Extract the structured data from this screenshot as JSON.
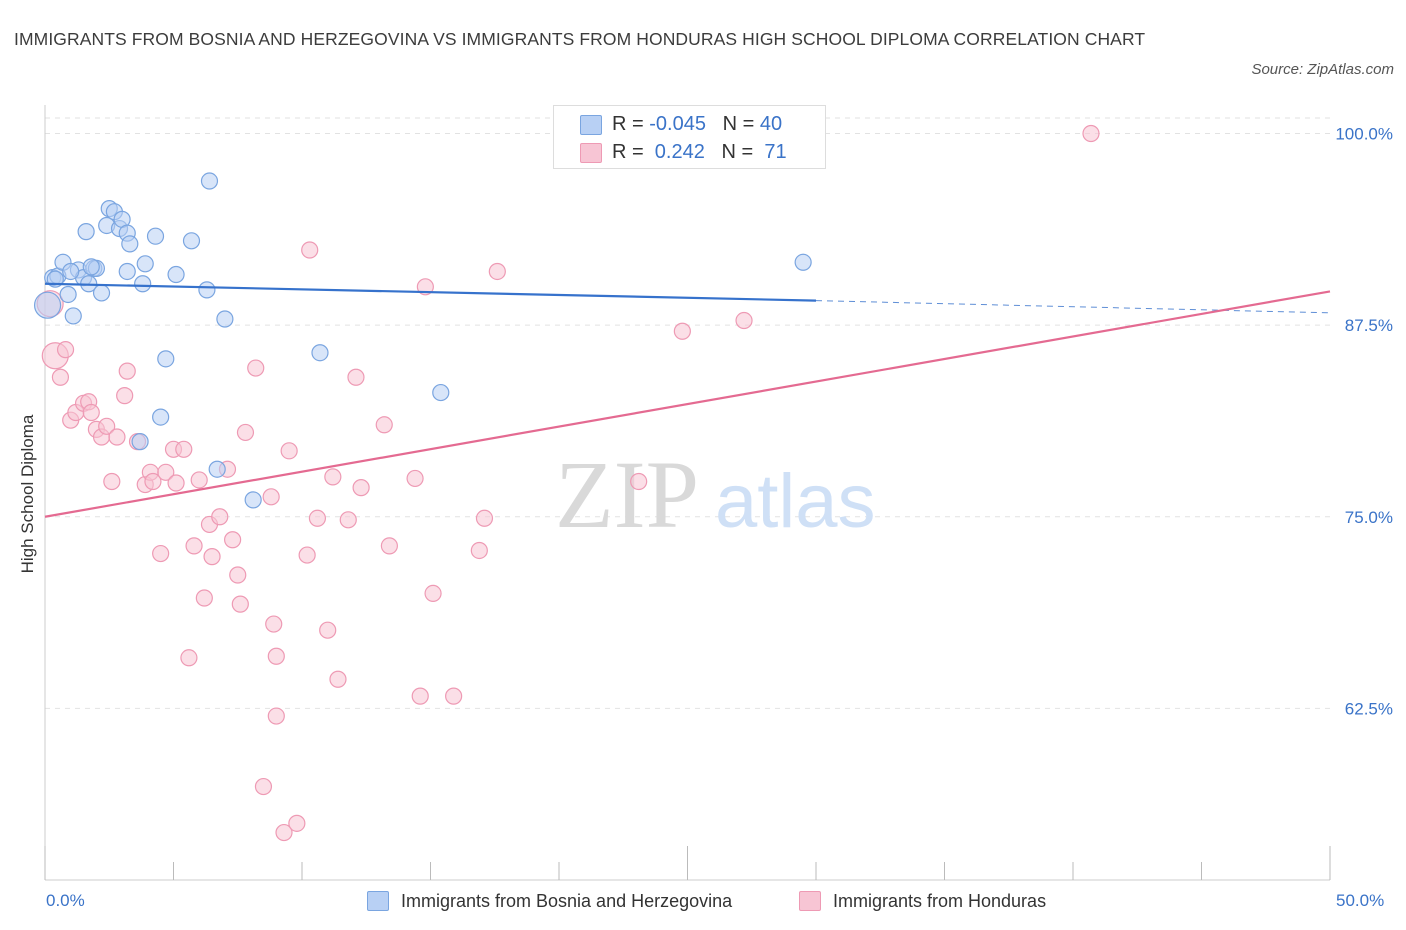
{
  "title": "IMMIGRANTS FROM BOSNIA AND HERZEGOVINA VS IMMIGRANTS FROM HONDURAS HIGH SCHOOL DIPLOMA CORRELATION CHART",
  "source": "Source: ZipAtlas.com",
  "watermark": {
    "zip": "ZIP",
    "atlas": "atlas"
  },
  "legend": {
    "rows": [
      {
        "r_label": "R = ",
        "r_value": "-0.045",
        "n_label": "N = ",
        "n_value": "40"
      },
      {
        "r_label": "R = ",
        "r_value": " 0.242",
        "n_label": "N = ",
        "n_value": " 71"
      }
    ]
  },
  "colors": {
    "blue_fill": "#b8d0f4",
    "blue_stroke": "#7aa5e0",
    "blue_line": "#3672cc",
    "pink_fill": "#f7c5d4",
    "pink_stroke": "#ee9ab4",
    "pink_line": "#e46a91",
    "tick_text": "#3a73c8",
    "grid": "#e2e2e2"
  },
  "chart_data": {
    "type": "scatter",
    "title": "IMMIGRANTS FROM BOSNIA AND HERZEGOVINA VS IMMIGRANTS FROM HONDURAS HIGH SCHOOL DIPLOMA CORRELATION CHART",
    "xlabel": "",
    "ylabel": "High School Diploma",
    "xlim": [
      0,
      50
    ],
    "ylim": [
      50,
      100
    ],
    "x_tick_labels": [
      "0.0%",
      "50.0%"
    ],
    "y_ticks": [
      62.5,
      75.0,
      87.5,
      100.0
    ],
    "y_tick_labels": [
      "62.5%",
      "75.0%",
      "87.5%",
      "100.0%"
    ],
    "grid": true,
    "legend_position": "bottom",
    "series": [
      {
        "name": "Immigrants from Bosnia and Herzegovina",
        "color": "#7aa5e0",
        "R": -0.045,
        "N": 40,
        "trend": {
          "x": [
            0,
            30
          ],
          "y": [
            90.2,
            89.1
          ]
        },
        "trend_dashed": {
          "x": [
            30,
            50
          ],
          "y": [
            89.1,
            88.3
          ]
        },
        "points": [
          {
            "x": 0.1,
            "y": 88.8,
            "big": true
          },
          {
            "x": 0.3,
            "y": 90.6
          },
          {
            "x": 0.5,
            "y": 90.7
          },
          {
            "x": 0.7,
            "y": 91.6
          },
          {
            "x": 0.9,
            "y": 89.5
          },
          {
            "x": 1.1,
            "y": 88.1
          },
          {
            "x": 1.3,
            "y": 91.1
          },
          {
            "x": 1.5,
            "y": 90.6
          },
          {
            "x": 1.6,
            "y": 93.6
          },
          {
            "x": 1.7,
            "y": 90.2
          },
          {
            "x": 1.9,
            "y": 91.2
          },
          {
            "x": 2.0,
            "y": 91.2
          },
          {
            "x": 2.2,
            "y": 89.6
          },
          {
            "x": 2.4,
            "y": 94.0
          },
          {
            "x": 2.5,
            "y": 95.1
          },
          {
            "x": 2.7,
            "y": 94.9
          },
          {
            "x": 2.9,
            "y": 93.8
          },
          {
            "x": 3.0,
            "y": 94.4
          },
          {
            "x": 3.2,
            "y": 93.5
          },
          {
            "x": 3.3,
            "y": 92.8
          },
          {
            "x": 3.2,
            "y": 91.0
          },
          {
            "x": 3.8,
            "y": 90.2
          },
          {
            "x": 3.9,
            "y": 91.5
          },
          {
            "x": 4.3,
            "y": 93.3
          },
          {
            "x": 4.7,
            "y": 85.3
          },
          {
            "x": 4.5,
            "y": 81.5
          },
          {
            "x": 3.7,
            "y": 79.9
          },
          {
            "x": 5.1,
            "y": 90.8
          },
          {
            "x": 5.7,
            "y": 93.0
          },
          {
            "x": 6.3,
            "y": 89.8
          },
          {
            "x": 6.4,
            "y": 96.9
          },
          {
            "x": 6.7,
            "y": 78.1
          },
          {
            "x": 7.0,
            "y": 87.9
          },
          {
            "x": 8.1,
            "y": 76.1
          },
          {
            "x": 10.7,
            "y": 85.7
          },
          {
            "x": 15.4,
            "y": 83.1
          },
          {
            "x": 29.5,
            "y": 91.6
          },
          {
            "x": 0.4,
            "y": 90.5
          },
          {
            "x": 1.0,
            "y": 91.0
          },
          {
            "x": 1.8,
            "y": 91.3
          }
        ]
      },
      {
        "name": "Immigrants from Honduras",
        "color": "#ee9ab4",
        "R": 0.242,
        "N": 71,
        "trend": {
          "x": [
            0,
            50
          ],
          "y": [
            75.0,
            89.7
          ]
        },
        "points": [
          {
            "x": 0.2,
            "y": 88.9,
            "big": true
          },
          {
            "x": 0.4,
            "y": 85.5,
            "big": true
          },
          {
            "x": 0.6,
            "y": 84.1
          },
          {
            "x": 0.8,
            "y": 85.9
          },
          {
            "x": 1.0,
            "y": 81.3
          },
          {
            "x": 1.2,
            "y": 81.8
          },
          {
            "x": 1.5,
            "y": 82.4
          },
          {
            "x": 1.7,
            "y": 82.5
          },
          {
            "x": 1.8,
            "y": 81.8
          },
          {
            "x": 2.0,
            "y": 80.7
          },
          {
            "x": 2.2,
            "y": 80.2
          },
          {
            "x": 2.4,
            "y": 80.9
          },
          {
            "x": 2.6,
            "y": 77.3
          },
          {
            "x": 2.8,
            "y": 80.2
          },
          {
            "x": 3.1,
            "y": 82.9
          },
          {
            "x": 3.2,
            "y": 84.5
          },
          {
            "x": 3.6,
            "y": 79.9
          },
          {
            "x": 3.9,
            "y": 77.1
          },
          {
            "x": 4.1,
            "y": 77.9
          },
          {
            "x": 4.2,
            "y": 77.3
          },
          {
            "x": 4.5,
            "y": 72.6
          },
          {
            "x": 4.7,
            "y": 77.9
          },
          {
            "x": 5.0,
            "y": 79.4
          },
          {
            "x": 5.1,
            "y": 77.2
          },
          {
            "x": 5.4,
            "y": 79.4
          },
          {
            "x": 5.6,
            "y": 65.8
          },
          {
            "x": 5.8,
            "y": 73.1
          },
          {
            "x": 6.0,
            "y": 77.4
          },
          {
            "x": 6.2,
            "y": 69.7
          },
          {
            "x": 6.4,
            "y": 74.5
          },
          {
            "x": 6.5,
            "y": 72.4
          },
          {
            "x": 6.8,
            "y": 75.0
          },
          {
            "x": 7.1,
            "y": 78.1
          },
          {
            "x": 7.3,
            "y": 73.5
          },
          {
            "x": 7.5,
            "y": 71.2
          },
          {
            "x": 7.6,
            "y": 69.3
          },
          {
            "x": 7.8,
            "y": 80.5
          },
          {
            "x": 8.2,
            "y": 84.7
          },
          {
            "x": 8.5,
            "y": 57.4
          },
          {
            "x": 8.8,
            "y": 76.3
          },
          {
            "x": 8.9,
            "y": 68.0
          },
          {
            "x": 9.0,
            "y": 65.9
          },
          {
            "x": 9.3,
            "y": 54.4
          },
          {
            "x": 9.5,
            "y": 79.3
          },
          {
            "x": 9.8,
            "y": 55.0
          },
          {
            "x": 10.2,
            "y": 72.5
          },
          {
            "x": 10.3,
            "y": 92.4
          },
          {
            "x": 10.6,
            "y": 74.9
          },
          {
            "x": 11.0,
            "y": 67.6
          },
          {
            "x": 11.2,
            "y": 77.6
          },
          {
            "x": 11.4,
            "y": 64.4
          },
          {
            "x": 11.8,
            "y": 74.8
          },
          {
            "x": 12.1,
            "y": 84.1
          },
          {
            "x": 12.3,
            "y": 76.9
          },
          {
            "x": 13.2,
            "y": 81.0
          },
          {
            "x": 13.4,
            "y": 73.1
          },
          {
            "x": 14.4,
            "y": 77.5
          },
          {
            "x": 14.6,
            "y": 63.3
          },
          {
            "x": 14.8,
            "y": 90.0
          },
          {
            "x": 15.1,
            "y": 70.0
          },
          {
            "x": 15.9,
            "y": 63.3
          },
          {
            "x": 16.9,
            "y": 72.8
          },
          {
            "x": 17.1,
            "y": 74.9
          },
          {
            "x": 17.6,
            "y": 91.0
          },
          {
            "x": 22.5,
            "y": 100.0
          },
          {
            "x": 23.1,
            "y": 77.3
          },
          {
            "x": 24.8,
            "y": 87.1
          },
          {
            "x": 27.2,
            "y": 87.8
          },
          {
            "x": 28.3,
            "y": 100.0
          },
          {
            "x": 40.7,
            "y": 100.0
          },
          {
            "x": 9.0,
            "y": 62.0
          }
        ]
      }
    ]
  },
  "bottom_legend": {
    "series1_label": "Immigrants from Bosnia and Herzegovina",
    "series2_label": "Immigrants from Honduras"
  }
}
